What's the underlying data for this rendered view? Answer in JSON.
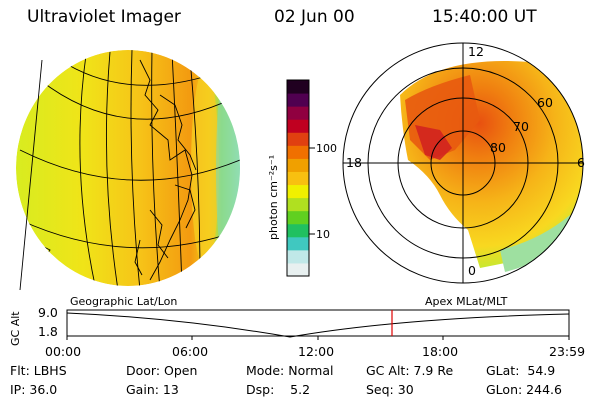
{
  "header": {
    "instrument": "Ultraviolet Imager",
    "date": "02 Jun 00",
    "time": "15:40:00 UT"
  },
  "left_panel": {
    "caption": "Geographic Lat/Lon"
  },
  "right_panel": {
    "caption": "Apex MLat/MLT",
    "mlt_labels": [
      "12",
      "18",
      "6",
      "0"
    ],
    "mlat_labels": [
      "60",
      "70",
      "80"
    ]
  },
  "colorbar": {
    "label": "photon cm⁻²s⁻¹",
    "ticks": [
      "100",
      "10"
    ],
    "colors": [
      "#e8f0f0",
      "#c0e8e8",
      "#40c8c0",
      "#20c060",
      "#60d020",
      "#b0e020",
      "#f0f000",
      "#f8c010",
      "#f0a000",
      "#f07000",
      "#e04010",
      "#c00020",
      "#900040",
      "#500050",
      "#200020"
    ]
  },
  "orbit": {
    "ylabel": "GC Alt",
    "y_ticks": [
      "9.0",
      "1.8"
    ],
    "x_ticks": [
      "00:00",
      "06:00",
      "12:00",
      "18:00",
      "23:59"
    ],
    "current_time_marker": "15:40"
  },
  "status": {
    "flt_label": "Flt: LBHS",
    "ip_label": "IP: 36.0",
    "door_label": "Door: Open",
    "gain_label": "Gain: 13",
    "mode_label": "Mode: Normal",
    "dsp_label": "Dsp:    5.2",
    "gcalt_label": "GC Alt: 7.9 Re",
    "seq_label": "Seq: 30",
    "glat_label": "GLat:  54.9",
    "glon_label": "GLon: 244.6"
  }
}
